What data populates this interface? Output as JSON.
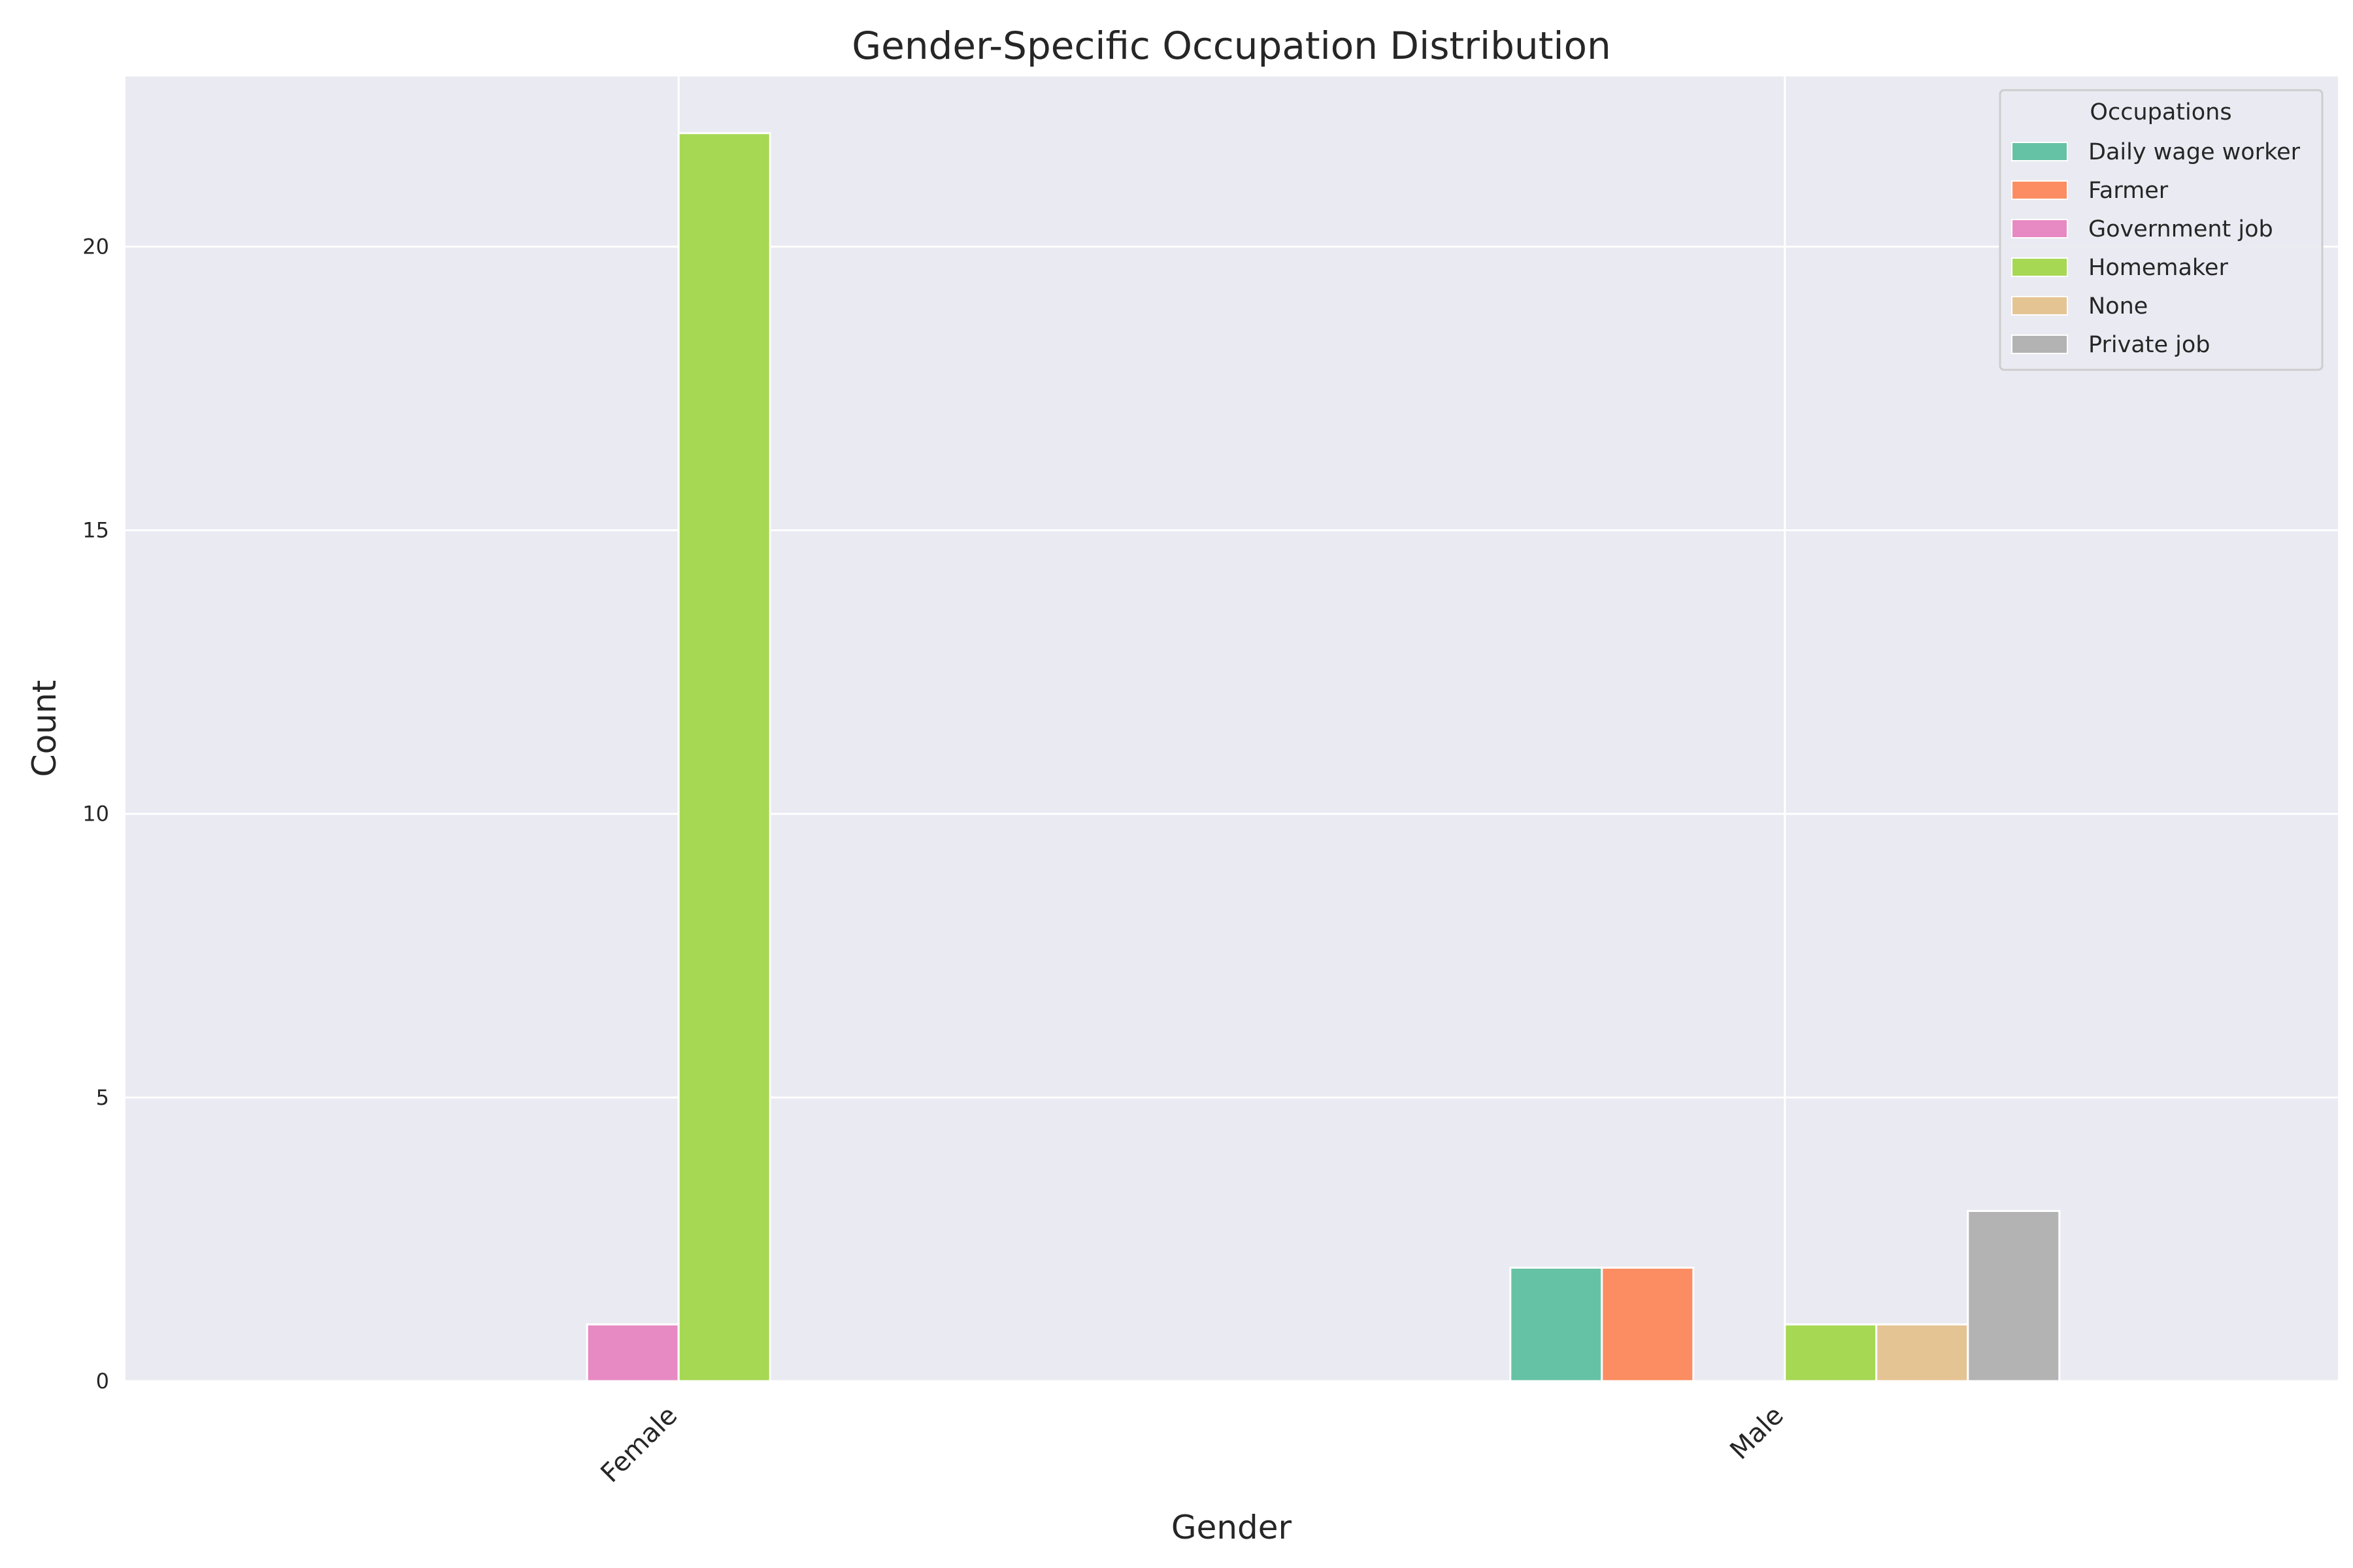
{
  "chart_data": {
    "type": "bar",
    "title": "Gender-Specific Occupation Distribution",
    "xlabel": "Gender",
    "ylabel": "Count",
    "categories": [
      "Female",
      "Male"
    ],
    "ylim": [
      0,
      23
    ],
    "yticks": [
      0,
      5,
      10,
      15,
      20
    ],
    "grid": true,
    "legend": {
      "title": "Occupations",
      "placement": "top-right"
    },
    "series": [
      {
        "name": "Daily wage worker",
        "values": [
          0,
          2
        ],
        "color": "#66c2a5"
      },
      {
        "name": "Farmer",
        "values": [
          0,
          2
        ],
        "color": "#fc8d62"
      },
      {
        "name": "Government job",
        "values": [
          1,
          0
        ],
        "color": "#e78ac3"
      },
      {
        "name": "Homemaker",
        "values": [
          22,
          1
        ],
        "color": "#a6d854"
      },
      {
        "name": "None",
        "values": [
          0,
          1
        ],
        "color": "#e5c494"
      },
      {
        "name": "Private job",
        "values": [
          0,
          3
        ],
        "color": "#b3b3b3"
      }
    ],
    "colors": {
      "plot_background": "#eaeaf2",
      "grid": "#ffffff",
      "bar_edge": "#ffffff"
    }
  }
}
